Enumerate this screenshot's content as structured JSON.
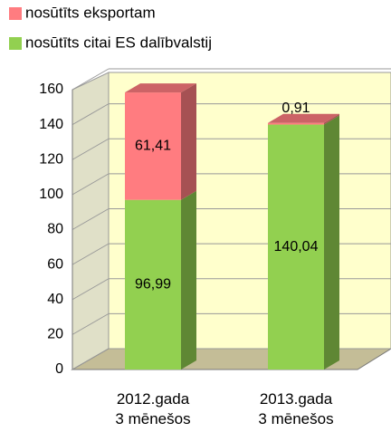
{
  "chart_data": {
    "type": "bar3d_stacked",
    "categories": [
      "2012.gada\n3 mēnešos",
      "2013.gada\n3 mēnešos"
    ],
    "series": [
      {
        "name": "nosūtīts citai ES dalībvalstij",
        "color": "#92d050",
        "values": [
          96.99,
          140.04
        ],
        "value_labels": [
          "96,99",
          "140,04"
        ]
      },
      {
        "name": "nosūtīts eksportam",
        "color": "#ff7c80",
        "values": [
          61.41,
          0.91
        ],
        "value_labels": [
          "61,41",
          "0,91"
        ]
      }
    ],
    "ylim": [
      0,
      160
    ],
    "yticks": [
      0,
      20,
      40,
      60,
      80,
      100,
      120,
      140,
      160
    ],
    "grid": true
  }
}
